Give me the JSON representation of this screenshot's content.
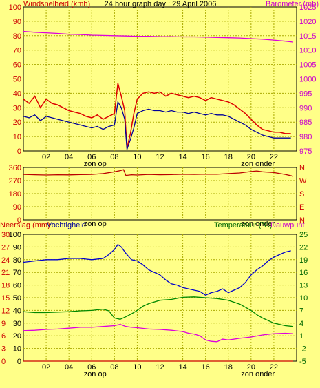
{
  "colors": {
    "background": "#ffff88",
    "wind_gust": "#dd0000",
    "wind_avg": "#000099",
    "barometer": "#dd00dd",
    "direction": "#bb0000",
    "rain": "#cc0000",
    "humidity": "#0000cc",
    "temperature": "#008800",
    "dewpoint": "#dd00dd",
    "grid": "#aaaa00"
  },
  "chart_data": [
    {
      "type": "line",
      "title": "24 hour graph day : 29 April 2006",
      "ylabel_left": "Windsnelheid (kmh)",
      "ylabel_right": "Barometer (mb)",
      "x_ticks": [
        "02",
        "04",
        "06",
        "08",
        "10",
        "12",
        "14",
        "16",
        "18",
        "20",
        "22"
      ],
      "x_tick_hours": [
        2,
        4,
        6,
        8,
        10,
        12,
        14,
        16,
        18,
        20,
        22
      ],
      "xlim": [
        0,
        24
      ],
      "annotations": [
        {
          "text": "zon op",
          "hour": 6.3
        },
        {
          "text": "zon onder",
          "hour": 20.6
        }
      ],
      "ylim_left": [
        0,
        100
      ],
      "yticks_left": [
        0,
        10,
        20,
        30,
        40,
        50,
        60,
        70,
        80,
        90,
        100
      ],
      "ylim_right": [
        975,
        1025
      ],
      "yticks_right": [
        975,
        980,
        985,
        990,
        995,
        1000,
        1005,
        1010,
        1015,
        1020,
        1025
      ],
      "grid": true,
      "series": [
        {
          "key": "wind_gust",
          "axis": "left",
          "x": [
            0,
            0.5,
            1,
            1.5,
            2,
            2.5,
            3,
            3.5,
            4,
            4.5,
            5,
            5.5,
            6,
            6.5,
            7,
            7.5,
            8,
            8.3,
            8.6,
            8.9,
            9.1,
            9.4,
            9.7,
            10,
            10.5,
            11,
            11.5,
            12,
            12.5,
            13,
            13.5,
            14,
            14.5,
            15,
            15.5,
            16,
            16.5,
            17,
            17.5,
            18,
            18.5,
            19,
            19.5,
            20,
            20.5,
            21,
            21.5,
            22,
            22.5,
            23,
            23.5
          ],
          "values": [
            36,
            33,
            38,
            30,
            36,
            33,
            32,
            30,
            28,
            27,
            26,
            24,
            23,
            25,
            22,
            24,
            26,
            47,
            38,
            28,
            2,
            12,
            26,
            36,
            40,
            41,
            40,
            41,
            38,
            40,
            39,
            38,
            37,
            38,
            37,
            35,
            37,
            36,
            35,
            34,
            32,
            29,
            26,
            22,
            18,
            15,
            14,
            13,
            13,
            12,
            12
          ]
        },
        {
          "key": "wind_avg",
          "axis": "left",
          "x": [
            0,
            0.5,
            1,
            1.5,
            2,
            2.5,
            3,
            3.5,
            4,
            4.5,
            5,
            5.5,
            6,
            6.5,
            7,
            7.5,
            8,
            8.3,
            8.6,
            8.9,
            9.1,
            9.4,
            9.7,
            10,
            10.5,
            11,
            11.5,
            12,
            12.5,
            13,
            13.5,
            14,
            14.5,
            15,
            15.5,
            16,
            16.5,
            17,
            17.5,
            18,
            18.5,
            19,
            19.5,
            20,
            20.5,
            21,
            21.5,
            22,
            22.5,
            23,
            23.5
          ],
          "values": [
            24,
            23,
            25,
            21,
            24,
            23,
            22,
            21,
            20,
            19,
            18,
            17,
            16,
            17,
            15,
            17,
            18,
            34,
            30,
            22,
            1,
            8,
            16,
            26,
            28,
            29,
            28,
            28,
            27,
            28,
            27,
            27,
            26,
            27,
            26,
            25,
            26,
            25,
            25,
            24,
            22,
            20,
            18,
            15,
            13,
            11,
            10,
            9,
            9,
            9,
            9
          ]
        },
        {
          "key": "barometer",
          "axis": "right",
          "x": [
            0,
            1,
            2,
            3,
            4,
            5,
            6,
            7,
            8,
            9,
            10,
            11,
            12,
            13,
            14,
            15,
            16,
            17,
            18,
            19,
            20,
            21,
            22,
            23,
            23.7
          ],
          "values": [
            1016.5,
            1016.2,
            1016.0,
            1015.8,
            1015.5,
            1015.4,
            1015.2,
            1015.1,
            1015.0,
            1014.9,
            1014.8,
            1014.8,
            1014.7,
            1014.7,
            1014.6,
            1014.6,
            1014.5,
            1014.4,
            1014.3,
            1014.2,
            1014.0,
            1013.8,
            1013.5,
            1013.1,
            1012.8
          ]
        }
      ]
    },
    {
      "type": "line",
      "ylabel_left": "",
      "ylabel_right": "",
      "x_ticks": [
        "02",
        "04",
        "06",
        "08",
        "10",
        "12",
        "14",
        "16",
        "18",
        "20",
        "22"
      ],
      "x_tick_hours": [
        2,
        4,
        6,
        8,
        10,
        12,
        14,
        16,
        18,
        20,
        22
      ],
      "xlim": [
        0,
        24
      ],
      "annotations": [
        {
          "text": "zon op",
          "hour": 6.3
        },
        {
          "text": "zon onder",
          "hour": 20.6
        }
      ],
      "ylim_left": [
        0,
        360
      ],
      "yticks_left": [
        0,
        90,
        180,
        270,
        360
      ],
      "yticks_right_labels": [
        "N",
        "E",
        "S",
        "W",
        "N"
      ],
      "grid": true,
      "series": [
        {
          "key": "direction",
          "axis": "left",
          "x": [
            0,
            1,
            2,
            3,
            4,
            5,
            6,
            7,
            8,
            8.5,
            8.8,
            9,
            9.5,
            10,
            11,
            12,
            13,
            14,
            15,
            16,
            17,
            18,
            19,
            20,
            20.5,
            21,
            22,
            23,
            23.7
          ],
          "values": [
            312,
            310,
            308,
            310,
            309,
            311,
            312,
            318,
            330,
            338,
            345,
            305,
            310,
            308,
            312,
            310,
            311,
            313,
            312,
            314,
            313,
            318,
            322,
            332,
            336,
            330,
            325,
            312,
            300
          ]
        }
      ]
    },
    {
      "type": "line",
      "ylabel_left_a": "Neerslag (mm)",
      "ylabel_left_b": "Vochtigheid",
      "ylabel_right_a": "Temperatuur (°C)",
      "ylabel_right_b": "Dauwpunt",
      "x_ticks": [
        "02",
        "04",
        "06",
        "08",
        "10",
        "12",
        "14",
        "16",
        "18",
        "20",
        "22"
      ],
      "x_tick_hours": [
        2,
        4,
        6,
        8,
        10,
        12,
        14,
        16,
        18,
        20,
        22
      ],
      "xlim": [
        0,
        24
      ],
      "annotations": [
        {
          "text": "zon op",
          "hour": 6.3
        },
        {
          "text": "zon onder",
          "hour": 20.6
        }
      ],
      "ylim_humidity": [
        0,
        100
      ],
      "yticks_humidity": [
        0,
        10,
        20,
        30,
        40,
        50,
        60,
        70,
        80,
        90,
        100
      ],
      "yticks_rain": [
        0,
        3,
        6,
        9,
        12,
        15,
        18,
        21,
        24,
        27,
        30
      ],
      "ylim_temp": [
        -5,
        25
      ],
      "yticks_temp": [
        -5,
        -2,
        1,
        4,
        7,
        10,
        13,
        16,
        19,
        22,
        25
      ],
      "grid": true,
      "series": [
        {
          "key": "humidity",
          "axis": "humidity",
          "x": [
            0,
            1,
            2,
            3,
            4,
            5,
            6,
            7,
            7.5,
            8,
            8.3,
            8.6,
            9,
            9.5,
            10,
            10.5,
            11,
            11.5,
            12,
            12.5,
            13,
            13.5,
            14,
            14.5,
            15,
            15.5,
            16,
            16.5,
            17,
            17.5,
            18,
            18.5,
            19,
            19.5,
            20,
            20.5,
            21,
            21.5,
            22,
            22.5,
            23,
            23.5
          ],
          "values": [
            78,
            79,
            80,
            80,
            81,
            81,
            80,
            81,
            84,
            88,
            92,
            90,
            85,
            80,
            79,
            76,
            72,
            70,
            68,
            64,
            61,
            60,
            58,
            57,
            56,
            55,
            52,
            54,
            55,
            57,
            54,
            56,
            58,
            62,
            68,
            72,
            75,
            79,
            82,
            84,
            86,
            87
          ]
        },
        {
          "key": "temperature",
          "axis": "temp",
          "x": [
            0,
            1,
            2,
            3,
            4,
            5,
            6,
            7,
            7.5,
            8,
            8.5,
            9,
            9.5,
            10,
            10.5,
            11,
            11.5,
            12,
            13,
            14,
            15,
            16,
            17,
            18,
            19,
            20,
            20.5,
            21,
            22,
            23,
            23.7
          ],
          "values": [
            6.7,
            6.5,
            6.5,
            6.6,
            6.7,
            6.9,
            7.0,
            7.3,
            6.9,
            5.2,
            4.9,
            5.5,
            6.2,
            7.0,
            8.0,
            8.6,
            9.0,
            9.4,
            9.6,
            10.1,
            10.2,
            10.0,
            9.8,
            9.4,
            8.5,
            7.0,
            6.0,
            5.2,
            4.0,
            3.4,
            3.2
          ]
        },
        {
          "key": "dewpoint",
          "axis": "temp",
          "x": [
            0,
            1,
            2,
            3,
            4,
            5,
            6,
            7,
            8,
            8.5,
            9,
            9.5,
            10,
            11,
            12,
            13,
            14,
            14.5,
            15,
            15.5,
            16,
            16.5,
            17,
            17.5,
            18,
            19,
            20,
            21,
            22,
            23,
            23.7
          ],
          "values": [
            2.2,
            2.3,
            2.5,
            2.6,
            2.8,
            3.0,
            3.0,
            3.2,
            3.4,
            3.7,
            3.2,
            3.0,
            2.9,
            2.6,
            2.5,
            2.3,
            2.0,
            1.6,
            1.4,
            1.0,
            0.0,
            -0.3,
            -0.4,
            0.2,
            0.0,
            0.4,
            0.7,
            1.2,
            1.5,
            1.6,
            1.5
          ]
        },
        {
          "key": "rain",
          "axis": "rain",
          "x": [
            0,
            23.7
          ],
          "values": [
            0,
            0
          ]
        }
      ]
    }
  ]
}
